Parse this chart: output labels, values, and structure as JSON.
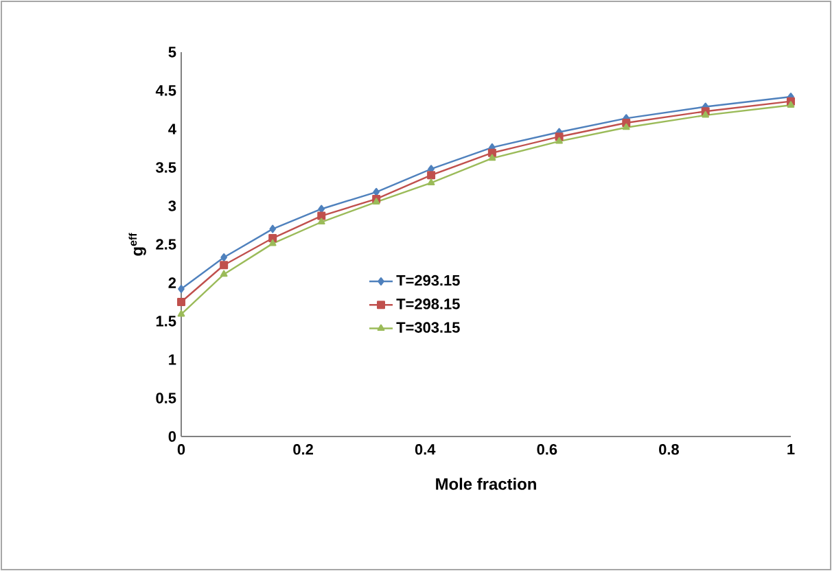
{
  "chart_data": {
    "type": "line",
    "xlabel": "Mole fraction",
    "ylabel": "g$^{eff}$",
    "x": [
      0,
      0.07,
      0.15,
      0.23,
      0.32,
      0.41,
      0.51,
      0.62,
      0.73,
      0.86,
      1
    ],
    "series": [
      {
        "name": "T=293.15",
        "color": "#4f81bd",
        "marker": "diamond",
        "values": [
          1.92,
          2.33,
          2.7,
          2.96,
          3.18,
          3.48,
          3.76,
          3.96,
          4.14,
          4.29,
          4.42
        ]
      },
      {
        "name": "T=298.15",
        "color": "#c0504d",
        "marker": "square",
        "values": [
          1.75,
          2.23,
          2.58,
          2.87,
          3.09,
          3.4,
          3.69,
          3.9,
          4.08,
          4.23,
          4.36
        ]
      },
      {
        "name": "T=303.15",
        "color": "#9bbb59",
        "marker": "triangle",
        "values": [
          1.59,
          2.11,
          2.51,
          2.79,
          3.05,
          3.3,
          3.62,
          3.84,
          4.02,
          4.18,
          4.31
        ]
      }
    ],
    "xlim": [
      0,
      1
    ],
    "xticks": [
      0,
      0.2,
      0.4,
      0.6,
      0.8,
      1
    ],
    "ylim": [
      0,
      5
    ],
    "yticks": [
      0,
      0.5,
      1,
      1.5,
      2,
      2.5,
      3,
      3.5,
      4,
      4.5,
      5
    ],
    "grid": false,
    "legend": "center",
    "line_style": "solid"
  }
}
